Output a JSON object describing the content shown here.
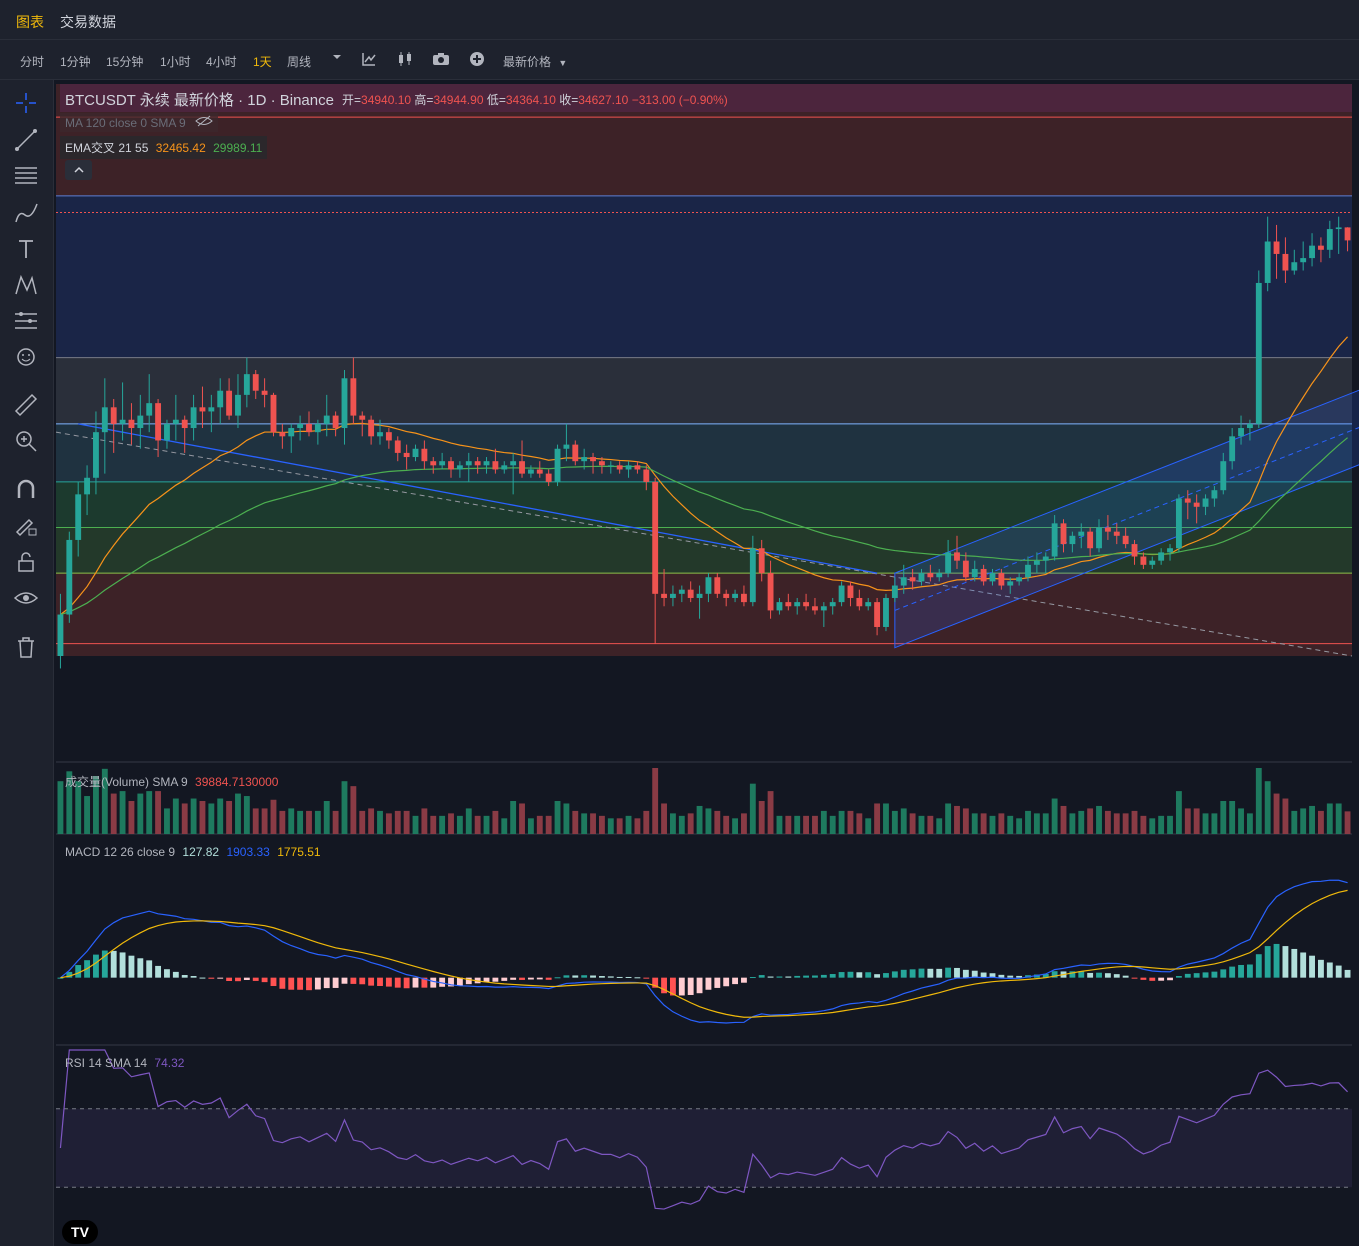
{
  "nav": {
    "tab_chart": "图表",
    "tab_trade": "交易数据"
  },
  "intervals": [
    {
      "label": "分时",
      "active": false
    },
    {
      "label": "1分钟",
      "active": false
    },
    {
      "label": "15分钟",
      "active": false
    },
    {
      "label": "1小时",
      "active": false
    },
    {
      "label": "4小时",
      "active": false
    },
    {
      "label": "1天",
      "active": true
    },
    {
      "label": "周线",
      "active": false
    }
  ],
  "toolbar": {
    "icons": [
      "dropdown-icon",
      "indicator-icon",
      "candle-type-icon",
      "camera-icon",
      "add-icon"
    ],
    "price_type": "最新价格"
  },
  "sidebar_icons": [
    "crosshair-icon",
    "trendline-icon",
    "fib-icon",
    "brush-icon",
    "text-icon",
    "pattern-icon",
    "forecast-icon",
    "emoji-icon",
    "ruler-icon",
    "zoom-icon",
    "magnet-icon",
    "lock-drawing-icon",
    "lock-icon",
    "eye-icon",
    "trash-icon"
  ],
  "legend": {
    "symbol": "BTCUSDT 永续 最新价格 · 1D · Binance",
    "open_label": "开=",
    "open": "34940.10",
    "high_label": "高=",
    "high": "34944.90",
    "low_label": "低=",
    "low": "34364.10",
    "close_label": "收=",
    "close": "34627.10",
    "change": "−313.00 (−0.90%)",
    "ma_line": "MA 120 close 0 SMA 9",
    "ema_label": "EMA交叉 21 55",
    "ema_fast": "32465.42",
    "ema_slow": "29989.11"
  },
  "volume_legend": {
    "label": "成交量(Volume) SMA 9",
    "value": "39884.7130000"
  },
  "macd_legend": {
    "label": "MACD 12 26 close 9",
    "hist": "127.82",
    "macd": "1903.33",
    "signal": "1775.51"
  },
  "rsi_legend": {
    "label": "RSI 14 SMA 14",
    "value": "74.32"
  },
  "logo": "TV",
  "colors": {
    "up": "#26a69a",
    "down": "#ef5350",
    "ema_fast": "#f7931a",
    "ema_slow": "#4caf50",
    "macd": "#2962ff",
    "signal": "#f0b90b",
    "rsi": "#7e57c2",
    "accent": "#f0b90b"
  },
  "chart_data": {
    "type": "candlestick",
    "ohlc": [
      [
        24600,
        26100,
        24300,
        25600
      ],
      [
        25600,
        27600,
        25400,
        27400
      ],
      [
        27400,
        28800,
        27000,
        28500
      ],
      [
        28500,
        29200,
        28000,
        28900
      ],
      [
        28900,
        30500,
        28500,
        30000
      ],
      [
        30000,
        31300,
        29000,
        30600
      ],
      [
        30600,
        30800,
        29500,
        30200
      ],
      [
        30200,
        31200,
        29800,
        30300
      ],
      [
        30300,
        30700,
        29700,
        30100
      ],
      [
        30100,
        30900,
        29600,
        30400
      ],
      [
        30400,
        31400,
        30000,
        30700
      ],
      [
        30700,
        30800,
        29400,
        29800
      ],
      [
        29800,
        30300,
        29600,
        30200
      ],
      [
        30200,
        30900,
        29800,
        30300
      ],
      [
        30300,
        30400,
        29500,
        30100
      ],
      [
        30100,
        30900,
        29800,
        30600
      ],
      [
        30600,
        31100,
        30100,
        30500
      ],
      [
        30500,
        30900,
        30000,
        30600
      ],
      [
        30600,
        31300,
        30200,
        31000
      ],
      [
        31000,
        31300,
        30300,
        30400
      ],
      [
        30400,
        31400,
        30100,
        30900
      ],
      [
        30900,
        31800,
        30600,
        31400
      ],
      [
        31400,
        31500,
        30800,
        31000
      ],
      [
        31000,
        31300,
        30600,
        30900
      ],
      [
        30900,
        30950,
        29900,
        30000
      ],
      [
        30000,
        30200,
        29600,
        29900
      ],
      [
        29900,
        30200,
        29500,
        30100
      ],
      [
        30100,
        30400,
        29800,
        30200
      ],
      [
        30200,
        30500,
        29900,
        30000
      ],
      [
        30000,
        30300,
        29700,
        30200
      ],
      [
        30200,
        30900,
        29900,
        30400
      ],
      [
        30400,
        30500,
        29900,
        30100
      ],
      [
        30100,
        31500,
        29700,
        31300
      ],
      [
        31300,
        31800,
        30200,
        30400
      ],
      [
        30400,
        30500,
        29900,
        30300
      ],
      [
        30300,
        30400,
        29700,
        29900
      ],
      [
        29900,
        30300,
        29700,
        30000
      ],
      [
        30000,
        30100,
        29600,
        29800
      ],
      [
        29800,
        29900,
        29300,
        29500
      ],
      [
        29500,
        29700,
        29100,
        29400
      ],
      [
        29400,
        29700,
        29300,
        29600
      ],
      [
        29600,
        29800,
        29100,
        29300
      ],
      [
        29300,
        29400,
        29000,
        29200
      ],
      [
        29200,
        29500,
        29100,
        29300
      ],
      [
        29300,
        29400,
        28900,
        29100
      ],
      [
        29100,
        29300,
        28900,
        29200
      ],
      [
        29200,
        29500,
        28800,
        29300
      ],
      [
        29300,
        29400,
        29000,
        29200
      ],
      [
        29200,
        29400,
        29000,
        29300
      ],
      [
        29300,
        29600,
        29000,
        29100
      ],
      [
        29100,
        29300,
        29000,
        29200
      ],
      [
        29200,
        29500,
        28500,
        29300
      ],
      [
        29300,
        29800,
        28900,
        29000
      ],
      [
        29000,
        29200,
        28900,
        29100
      ],
      [
        29100,
        29300,
        28900,
        29000
      ],
      [
        29000,
        29100,
        28700,
        28800
      ],
      [
        28800,
        29700,
        28700,
        29600
      ],
      [
        29600,
        30200,
        29300,
        29700
      ],
      [
        29700,
        29800,
        29200,
        29300
      ],
      [
        29300,
        29600,
        29100,
        29400
      ],
      [
        29400,
        29500,
        29000,
        29300
      ],
      [
        29300,
        29400,
        29000,
        29200
      ],
      [
        29200,
        29300,
        29000,
        29200
      ],
      [
        29200,
        29300,
        29000,
        29100
      ],
      [
        29100,
        29300,
        28900,
        29200
      ],
      [
        29200,
        29300,
        29000,
        29100
      ],
      [
        29100,
        29200,
        28600,
        28800
      ],
      [
        28800,
        28900,
        24900,
        26100
      ],
      [
        26100,
        26700,
        25800,
        26000
      ],
      [
        26000,
        26300,
        25800,
        26100
      ],
      [
        26100,
        26300,
        25900,
        26200
      ],
      [
        26200,
        26400,
        25900,
        26000
      ],
      [
        26000,
        26300,
        25500,
        26100
      ],
      [
        26100,
        26600,
        25900,
        26500
      ],
      [
        26500,
        26600,
        26000,
        26100
      ],
      [
        26100,
        26200,
        25800,
        26000
      ],
      [
        26000,
        26200,
        25900,
        26100
      ],
      [
        26100,
        26300,
        25800,
        25900
      ],
      [
        25900,
        27500,
        25800,
        27200
      ],
      [
        27200,
        27400,
        26400,
        26600
      ],
      [
        26600,
        26900,
        25500,
        25700
      ],
      [
        25700,
        26000,
        25600,
        25900
      ],
      [
        25900,
        26100,
        25700,
        25800
      ],
      [
        25800,
        26000,
        25600,
        25900
      ],
      [
        25900,
        26100,
        25700,
        25800
      ],
      [
        25800,
        26000,
        25600,
        25700
      ],
      [
        25700,
        25900,
        25300,
        25800
      ],
      [
        25800,
        26000,
        25600,
        25900
      ],
      [
        25900,
        26400,
        25800,
        26300
      ],
      [
        26300,
        26400,
        25800,
        26000
      ],
      [
        26000,
        26200,
        25700,
        25800
      ],
      [
        25800,
        26000,
        25700,
        25900
      ],
      [
        25900,
        26000,
        25100,
        25300
      ],
      [
        25300,
        26100,
        25200,
        26000
      ],
      [
        26000,
        26500,
        25900,
        26300
      ],
      [
        26300,
        26800,
        26100,
        26500
      ],
      [
        26500,
        26700,
        26200,
        26400
      ],
      [
        26400,
        26700,
        26300,
        26600
      ],
      [
        26600,
        26800,
        26400,
        26500
      ],
      [
        26500,
        26700,
        26400,
        26600
      ],
      [
        26600,
        27400,
        26500,
        27100
      ],
      [
        27100,
        27500,
        26700,
        26900
      ],
      [
        26900,
        27100,
        26400,
        26500
      ],
      [
        26500,
        26900,
        26400,
        26700
      ],
      [
        26700,
        26800,
        26300,
        26400
      ],
      [
        26400,
        26700,
        26300,
        26600
      ],
      [
        26600,
        26700,
        26200,
        26300
      ],
      [
        26300,
        26500,
        26100,
        26400
      ],
      [
        26400,
        26600,
        26300,
        26500
      ],
      [
        26500,
        27000,
        26400,
        26800
      ],
      [
        26800,
        27100,
        26600,
        26900
      ],
      [
        26900,
        27100,
        26600,
        27000
      ],
      [
        27000,
        28000,
        26900,
        27800
      ],
      [
        27800,
        27900,
        27100,
        27300
      ],
      [
        27300,
        27600,
        27100,
        27500
      ],
      [
        27500,
        27800,
        27200,
        27600
      ],
      [
        27600,
        27700,
        27000,
        27200
      ],
      [
        27200,
        27900,
        27100,
        27700
      ],
      [
        27700,
        28000,
        27400,
        27600
      ],
      [
        27600,
        27800,
        27300,
        27500
      ],
      [
        27500,
        27700,
        27200,
        27300
      ],
      [
        27300,
        27400,
        26800,
        27000
      ],
      [
        27000,
        27100,
        26700,
        26800
      ],
      [
        26800,
        27000,
        26700,
        26900
      ],
      [
        26900,
        27200,
        26800,
        27100
      ],
      [
        27100,
        27300,
        26900,
        27200
      ],
      [
        27200,
        28500,
        27100,
        28400
      ],
      [
        28400,
        28600,
        27900,
        28300
      ],
      [
        28300,
        28500,
        27800,
        28200
      ],
      [
        28200,
        28500,
        28000,
        28400
      ],
      [
        28400,
        28700,
        28200,
        28600
      ],
      [
        28600,
        29500,
        28500,
        29300
      ],
      [
        29300,
        30100,
        29100,
        29900
      ],
      [
        29900,
        30400,
        29700,
        30100
      ],
      [
        30100,
        30300,
        29800,
        30200
      ],
      [
        30200,
        33900,
        30100,
        33600
      ],
      [
        33600,
        35200,
        33400,
        34600
      ],
      [
        34600,
        35000,
        33700,
        34300
      ],
      [
        34300,
        34700,
        33600,
        33900
      ],
      [
        33900,
        34400,
        33800,
        34100
      ],
      [
        34100,
        34600,
        33900,
        34200
      ],
      [
        34200,
        34800,
        34000,
        34500
      ],
      [
        34500,
        34700,
        34100,
        34400
      ],
      [
        34400,
        35100,
        34200,
        34900
      ],
      [
        34900,
        35200,
        34300,
        34940
      ],
      [
        34940.1,
        34944.9,
        34364.1,
        34627.1
      ]
    ],
    "price_range": [
      24600,
      38400
    ],
    "volume_range": [
      0,
      120000
    ],
    "macd_range": [
      -1300,
      2500
    ],
    "rsi_range": [
      0,
      100
    ],
    "rsi_levels": [
      70,
      30
    ]
  }
}
